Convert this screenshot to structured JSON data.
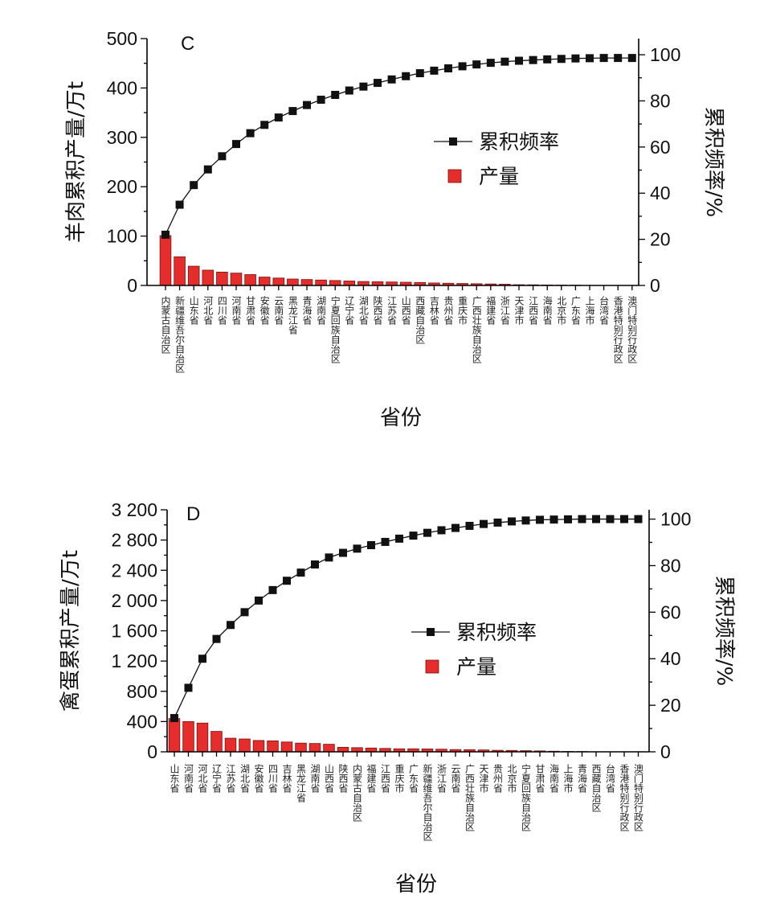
{
  "chart_data": [
    {
      "type": "bar",
      "panel_label": "C",
      "ylabel": "羊肉累积产量/万t",
      "y2label": "累积频率/%",
      "xlabel": "省份",
      "ylim": [
        0,
        500
      ],
      "yticks": [
        0,
        100,
        200,
        300,
        400,
        500
      ],
      "y2lim": [
        0,
        100
      ],
      "y2ticks": [
        0,
        20,
        40,
        60,
        80,
        100
      ],
      "y2_axis_max": 107,
      "legend": {
        "line": "累积频率",
        "bar": "产量",
        "position": "center-right"
      },
      "categories": [
        "内蒙古自治区",
        "新疆维吾尔自治区",
        "山东省",
        "河北省",
        "四川省",
        "河南省",
        "甘肃省",
        "安徽省",
        "云南省",
        "黑龙江省",
        "青海省",
        "湖南省",
        "宁夏回族自治区",
        "辽宁省",
        "湖北省",
        "陕西省",
        "江苏省",
        "山西省",
        "西藏自治区",
        "吉林省",
        "贵州省",
        "重庆市",
        "广西壮族自治区",
        "福建省",
        "浙江省",
        "天津市",
        "江西省",
        "海南省",
        "北京市",
        "广东省",
        "上海市",
        "台湾省",
        "香港特别行政区",
        "澳门特别行政区"
      ],
      "series": [
        {
          "name": "产量",
          "type": "bar",
          "values": [
            101,
            58,
            39,
            31,
            27,
            25,
            22,
            17,
            15,
            13,
            12,
            11,
            10,
            9,
            8,
            7.5,
            7,
            6.5,
            6,
            5,
            4.5,
            4,
            3.5,
            3,
            2.5,
            1.5,
            1.3,
            1,
            0.7,
            0.6,
            0.3,
            0.2,
            0,
            0
          ]
        },
        {
          "name": "累积频率",
          "type": "line",
          "axis": "right",
          "values": [
            22,
            35,
            43.5,
            50.3,
            56,
            61.3,
            66,
            69.6,
            72.8,
            75.6,
            78.2,
            80.5,
            82.6,
            84.5,
            86.2,
            87.8,
            89.3,
            90.7,
            92,
            93.1,
            94.1,
            95,
            95.8,
            96.5,
            97,
            97.4,
            97.7,
            98,
            98.2,
            98.4,
            98.5,
            98.6,
            98.6,
            98.6
          ]
        }
      ]
    },
    {
      "type": "bar",
      "panel_label": "D",
      "ylabel": "禽蛋累积产量/万t",
      "y2label": "累积频率/%",
      "xlabel": "省份",
      "ylim": [
        0,
        3200
      ],
      "yticks": [
        0,
        400,
        800,
        1200,
        1600,
        2000,
        2400,
        2800,
        3200
      ],
      "ytick_labels": [
        "0",
        "400",
        "800",
        "1 200",
        "1 600",
        "2 000",
        "2 400",
        "2 800",
        "3 200"
      ],
      "y2lim": [
        0,
        100
      ],
      "y2ticks": [
        0,
        20,
        40,
        60,
        80,
        100
      ],
      "y2_axis_max": 104,
      "legend": {
        "line": "累积频率",
        "bar": "产量",
        "position": "center-right"
      },
      "categories": [
        "山东省",
        "河南省",
        "河北省",
        "辽宁省",
        "江苏省",
        "湖北省",
        "安徽省",
        "四川省",
        "吉林省",
        "黑龙江省",
        "湖南省",
        "山西省",
        "陕西省",
        "内蒙古自治区",
        "福建省",
        "江西省",
        "重庆市",
        "广东省",
        "新疆维吾尔自治区",
        "浙江省",
        "云南省",
        "广西壮族自治区",
        "天津市",
        "贵州省",
        "北京市",
        "宁夏回族自治区",
        "甘肃省",
        "海南省",
        "上海市",
        "青海省",
        "西藏自治区",
        "台湾省",
        "香港特别行政区",
        "澳门特别行政区"
      ],
      "series": [
        {
          "name": "产量",
          "type": "bar",
          "values": [
            440,
            400,
            380,
            270,
            180,
            170,
            150,
            145,
            130,
            115,
            110,
            100,
            60,
            55,
            50,
            45,
            40,
            40,
            38,
            35,
            30,
            28,
            25,
            20,
            18,
            15,
            12,
            8,
            5,
            4,
            1,
            0,
            0,
            0
          ]
        },
        {
          "name": "累积频率",
          "type": "line",
          "axis": "right",
          "values": [
            14.5,
            27.5,
            40,
            48.5,
            54.5,
            60,
            65,
            69.5,
            73.5,
            77,
            80.5,
            83.5,
            85.5,
            87.3,
            88.8,
            90.2,
            91.6,
            92.9,
            94.1,
            95.2,
            96.2,
            97.1,
            97.9,
            98.5,
            99,
            99.4,
            99.7,
            99.8,
            99.9,
            100,
            100,
            100,
            100,
            100
          ]
        }
      ]
    }
  ]
}
